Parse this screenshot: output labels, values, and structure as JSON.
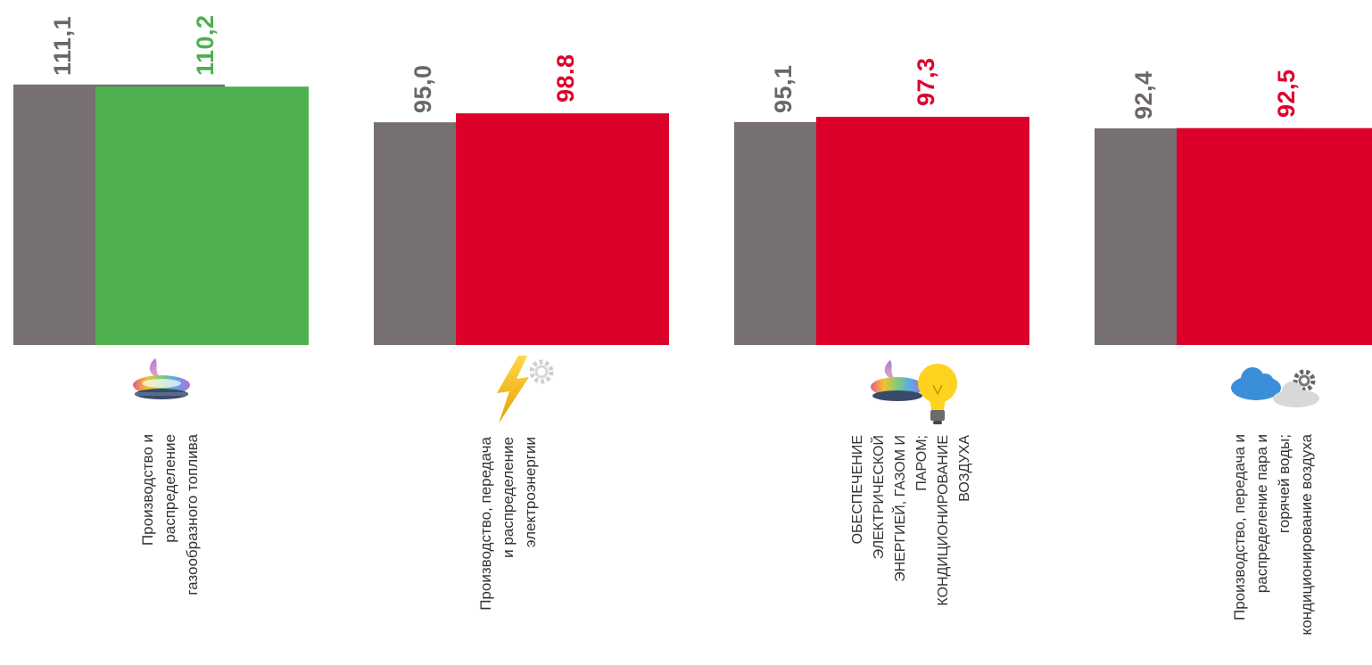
{
  "colors": {
    "previous": "#767170",
    "good": "#4eaf4e",
    "bad": "#dc002b",
    "label_gray": "#6b6766"
  },
  "chart_data": {
    "type": "bar",
    "categories": [
      "Производство и распределение газообразного топлива",
      "Производство, передача и распределение электроэнергии",
      "ОБЕСПЕЧЕНИЕ ЭЛЕКТРИЧЕСКОЙ ЭНЕРГИЕЙ, ГАЗОМ И ПАРОМ; КОНДИЦИОНИРОВАНИЕ ВОЗДУХА",
      "Производство, передача и распределение пара и горячей воды; кондиционирование воздуха"
    ],
    "series": [
      {
        "values": [
          111.1,
          95.0,
          95.1,
          92.4
        ],
        "labels": [
          "111,1",
          "95,0",
          "95,1",
          "92,4"
        ]
      },
      {
        "values": [
          110.2,
          98.8,
          97.3,
          92.5
        ],
        "labels": [
          "110,2",
          "98.8",
          "97,3",
          "92,5"
        ],
        "status": [
          "good",
          "bad",
          "bad",
          "bad"
        ]
      }
    ],
    "ylim": [
      0,
      115
    ],
    "grid": false,
    "legend": "none",
    "icons": [
      "gas-burner-icon",
      "lightning-gear-icon",
      "burner-lightbulb-icon",
      "cloud-gear-icon"
    ]
  },
  "category_labels": [
    "Производство и\nраспределение\nгазообразного топлива",
    "Производство, передача\nи распределение\nэлектроэнергии",
    "ОБЕСПЕЧЕНИЕ\nЭЛЕКТРИЧЕСКОЙ\nЭНЕРГИЕЙ, ГАЗОМ И\nПАРОМ;\nКОНДИЦИОНИРОВАНИЕ\nВОЗДУХА",
    "Производство, передача и\nраспределение пара и\nгорячей воды;\nкондиционирование воздуха"
  ]
}
